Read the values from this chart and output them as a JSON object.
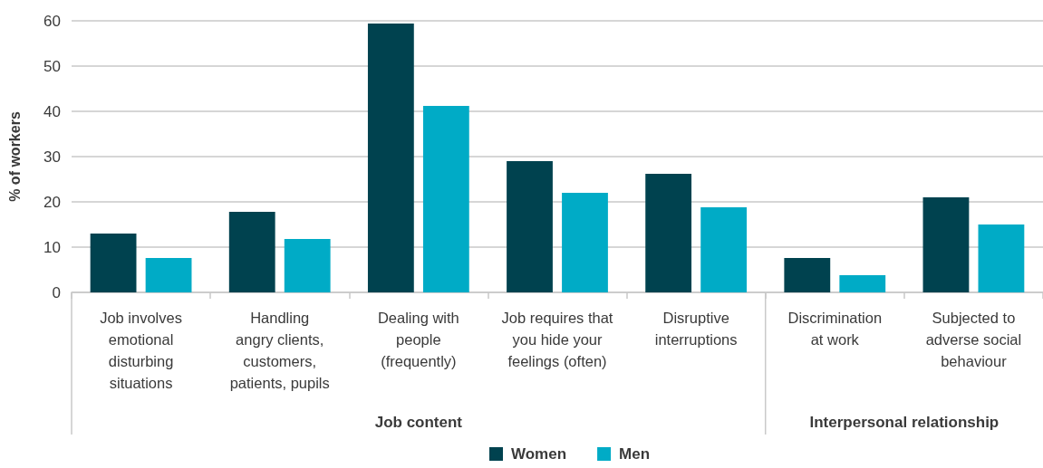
{
  "chart_data": {
    "type": "bar",
    "ylabel": "% of workers",
    "categories": [
      "Job involves\nemotional\ndisturbing\nsituations",
      "Handling\nangry clients,\ncustomers,\npatients, pupils",
      "Dealing with\npeople\n(frequently)",
      "Job requires that\nyou hide your\nfeelings (often)",
      "Disruptive\ninterruptions",
      "Discrimination\nat work",
      "Subjected to\nadverse social\nbehaviour"
    ],
    "series": [
      {
        "name": "Women",
        "color": "#00424f",
        "values": [
          13,
          17.8,
          59.4,
          29,
          26.2,
          7.6,
          21
        ]
      },
      {
        "name": "Men",
        "color": "#00abc6",
        "values": [
          7.6,
          11.8,
          41.2,
          22,
          18.8,
          3.8,
          15
        ]
      }
    ],
    "ylim": [
      0,
      60
    ],
    "yticks": [
      0,
      10,
      20,
      30,
      40,
      50,
      60
    ],
    "grid": "y",
    "legend": "bottom",
    "annotations": [
      "Job content",
      "Interpersonal relationship"
    ]
  }
}
